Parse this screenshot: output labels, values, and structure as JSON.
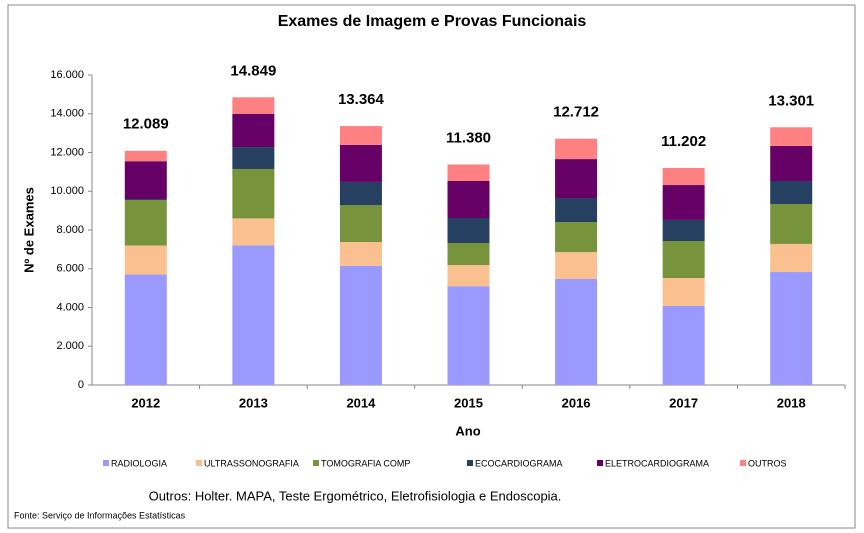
{
  "chart_data": {
    "type": "stacked_bar",
    "title": "Exames de Imagem e Provas Funcionais",
    "x_label": "Ano",
    "y_label": "Nº de Exames",
    "categories": [
      "2012",
      "2013",
      "2014",
      "2015",
      "2016",
      "2017",
      "2018"
    ],
    "series": [
      {
        "name": "RADIOLOGIA",
        "color": "#9999ff",
        "values": [
          5700,
          7200,
          6150,
          5100,
          5470,
          4080,
          5830
        ]
      },
      {
        "name": "ULTRASSONOGRAFIA",
        "color": "#fac090",
        "values": [
          1500,
          1400,
          1230,
          1090,
          1390,
          1440,
          1450
        ]
      },
      {
        "name": "TOMOGRAFIA COMP",
        "color": "#77933c",
        "values": [
          2350,
          2550,
          1910,
          1140,
          1550,
          1910,
          2060
        ]
      },
      {
        "name": "ECOCARDIOGRAMA",
        "color": "#254061",
        "values": [
          50,
          1130,
          1190,
          1290,
          1240,
          1090,
          1190
        ]
      },
      {
        "name": "ELETROCARDIOGRAMA",
        "color": "#660066",
        "values": [
          1950,
          1720,
          1910,
          1910,
          2010,
          1800,
          1810
        ]
      },
      {
        "name": "OUTROS",
        "color": "#ff8080",
        "values": [
          539,
          849,
          974,
          850,
          1052,
          882,
          961
        ]
      }
    ],
    "totals": {
      "values": [
        12089,
        14849,
        13364,
        11380,
        12712,
        11202,
        13301
      ],
      "value_labels": [
        "12.089",
        "14.849",
        "13.364",
        "11.380",
        "12.712",
        "11.202",
        "13.301"
      ]
    },
    "ylim": [
      0,
      16000
    ],
    "yticks": [
      0,
      {
        "value": 2000,
        "label": "2.000"
      },
      {
        "value": 4000,
        "label": "4.000"
      },
      {
        "value": 6000,
        "label": "6.000"
      },
      {
        "value": 8000,
        "label": "8.000"
      },
      {
        "value": 10000,
        "label": "10.000"
      },
      {
        "value": 12000,
        "label": "12.000"
      },
      {
        "value": 14000,
        "label": "14.000"
      },
      {
        "value": 16000,
        "label": "16.000"
      }
    ],
    "legend": "bottom",
    "note": "Outros: Holter. MAPA, Teste Ergométrico,  Eletrofisiologia e Endoscopia.",
    "source": "Fonte: Serviço de Informações Estatísticas"
  }
}
